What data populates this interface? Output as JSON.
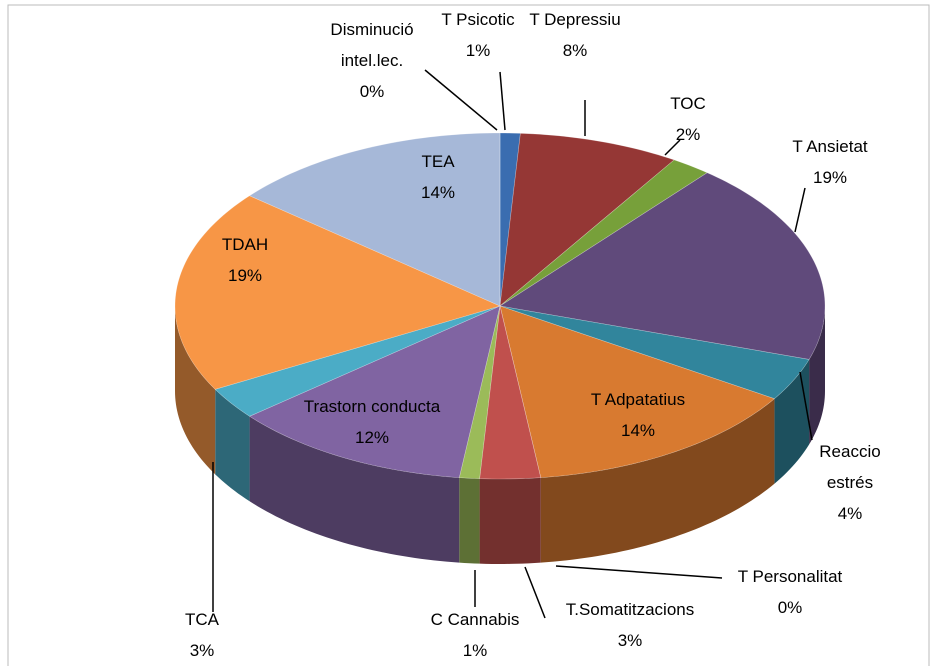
{
  "chart_data": {
    "type": "pie",
    "categories": [
      "T Psicotic",
      "T Depressiu",
      "TOC",
      "T Ansietat",
      "Reaccio estrés",
      "T Adpatatius",
      "T Personalitat",
      "T.Somatitzacions",
      "C Cannabis",
      "Trastorn conducta",
      "TCA",
      "TDAH",
      "TEA",
      "Disminució intel.lec."
    ],
    "values": [
      1,
      8,
      2,
      19,
      4,
      14,
      0,
      3,
      1,
      12,
      3,
      19,
      14,
      0
    ],
    "value_labels": [
      "1%",
      "8%",
      "2%",
      "19%",
      "4%",
      "14%",
      "0%",
      "3%",
      "1%",
      "12%",
      "3%",
      "19%",
      "14%",
      "0%"
    ],
    "colors": [
      "#3a6db0",
      "#953735",
      "#77a03a",
      "#604a7b",
      "#31859c",
      "#d87a30",
      "#4f6228",
      "#c0504d",
      "#9bbb59",
      "#8064a2",
      "#4bacc6",
      "#f79646",
      "#a6b8d8",
      "#1f497d"
    ]
  }
}
